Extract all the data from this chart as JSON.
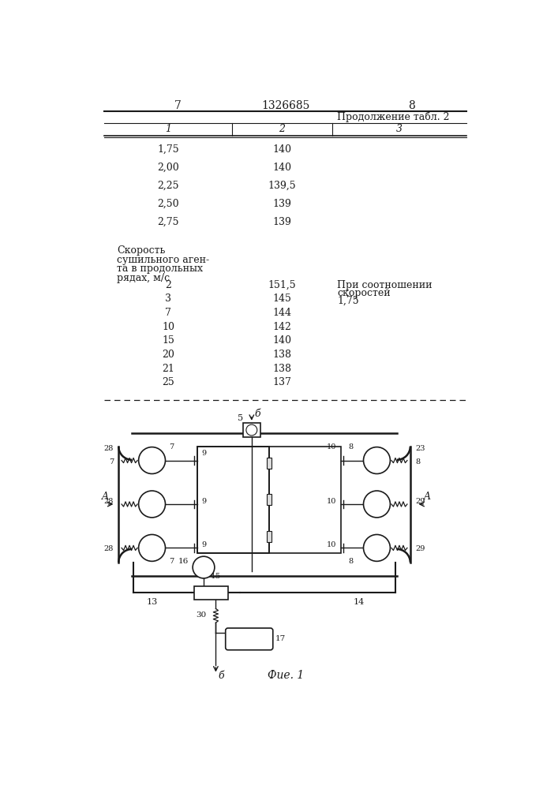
{
  "page_left": "7",
  "page_center": "1326685",
  "page_right": "8",
  "table_continuation": "Продолжение табл. 2",
  "col_headers": [
    "1",
    "2",
    "3"
  ],
  "table_rows_part1": [
    [
      "1,75",
      "140",
      ""
    ],
    [
      "2,00",
      "140",
      ""
    ],
    [
      "2,25",
      "139,5",
      ""
    ],
    [
      "2,50",
      "139",
      ""
    ],
    [
      "2,75",
      "139",
      ""
    ]
  ],
  "section_header_lines": [
    "Скорость",
    "сушильного аген-",
    "та в продольных",
    "рядах, м/с"
  ],
  "table_rows_part2": [
    [
      "2",
      "151,5",
      "При соотношении",
      "скоростей",
      "1,75"
    ],
    [
      "3",
      "145",
      "",
      "",
      ""
    ],
    [
      "7",
      "144",
      "",
      "",
      ""
    ],
    [
      "10",
      "142",
      "",
      "",
      ""
    ],
    [
      "15",
      "140",
      "",
      "",
      ""
    ],
    [
      "20",
      "138",
      "",
      "",
      ""
    ],
    [
      "21",
      "138",
      "",
      "",
      ""
    ],
    [
      "25",
      "137",
      "",
      "",
      ""
    ]
  ],
  "fig_caption": "Фие. 1",
  "text_color": "#1a1a1a",
  "line_color": "#1a1a1a"
}
